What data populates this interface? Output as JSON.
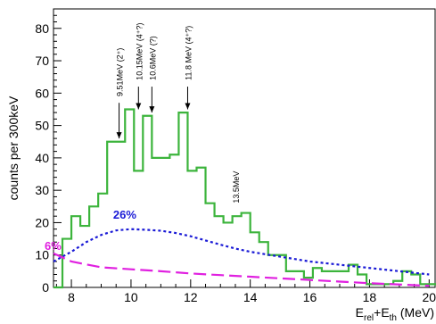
{
  "chart_data": {
    "type": "histogram",
    "xlabel": {
      "base1": "E",
      "sub1": "rel",
      "mid": "+E",
      "sub2": "th",
      "unit": " (MeV)"
    },
    "ylabel": "counts per 300keV",
    "xlim": [
      7.4,
      20.2
    ],
    "ylim": [
      0,
      86
    ],
    "xticks": [
      8,
      10,
      12,
      14,
      16,
      18,
      20
    ],
    "yticks": [
      0,
      10,
      20,
      30,
      40,
      50,
      60,
      70,
      80
    ],
    "histogram": {
      "name": "data",
      "color": "#3cb43c",
      "bin_width": 0.3,
      "bin_edges_start": 7.4,
      "values": [
        0,
        15,
        22,
        19,
        25,
        29,
        45,
        45,
        55,
        36,
        53,
        40,
        40,
        41,
        54,
        36,
        37,
        26,
        22,
        20,
        22,
        23,
        17,
        14,
        10,
        10,
        5,
        5,
        3,
        6,
        5,
        5,
        5,
        7,
        4,
        1,
        1,
        1,
        2,
        5,
        4,
        1,
        1
      ]
    },
    "series": [
      {
        "name": "26%",
        "color": "#1a1ad6",
        "style": "dotted",
        "x": [
          7.4,
          8.0,
          8.5,
          9.0,
          9.5,
          10.0,
          10.5,
          11.0,
          11.5,
          12.0,
          12.5,
          13.0,
          13.5,
          14.0,
          15.0,
          16.0,
          17.0,
          18.0,
          19.0,
          20.0
        ],
        "y": [
          8,
          11,
          14,
          16.2,
          17.6,
          18.0,
          17.8,
          17.5,
          16.8,
          15.8,
          14.5,
          13.2,
          12.0,
          11.0,
          9.5,
          8.0,
          7.0,
          6.0,
          5.0,
          4.0
        ]
      },
      {
        "name": "6%",
        "color": "#e020e0",
        "style": "dashed",
        "x": [
          7.4,
          8.0,
          9.0,
          10.0,
          11.0,
          12.0,
          13.0,
          14.0,
          15.0,
          16.0,
          17.0,
          18.0,
          19.0,
          20.0
        ],
        "y": [
          10.5,
          8.0,
          6.2,
          5.6,
          5.0,
          4.3,
          3.8,
          3.3,
          2.8,
          2.3,
          1.8,
          1.3,
          0.9,
          0.5
        ]
      }
    ],
    "annotations": [
      {
        "label": "9.51MeV (2⁺)",
        "x": 9.6,
        "arrow_tip": 46,
        "arrow_tail": 57,
        "text_bottom": 59
      },
      {
        "label": "10.15MeV (4⁺?)",
        "x": 10.25,
        "arrow_tip": 55,
        "arrow_tail": 62,
        "text_bottom": 64
      },
      {
        "label": "10.6MeV (?)",
        "x": 10.7,
        "arrow_tip": 54,
        "arrow_tail": 62,
        "text_bottom": 64
      },
      {
        "label": "11.8 MeV (4⁺?)",
        "x": 11.9,
        "arrow_tip": 55,
        "arrow_tail": 62,
        "text_bottom": 64
      },
      {
        "label": "13.5MeV",
        "x": 13.5,
        "text_bottom": 26
      }
    ]
  }
}
